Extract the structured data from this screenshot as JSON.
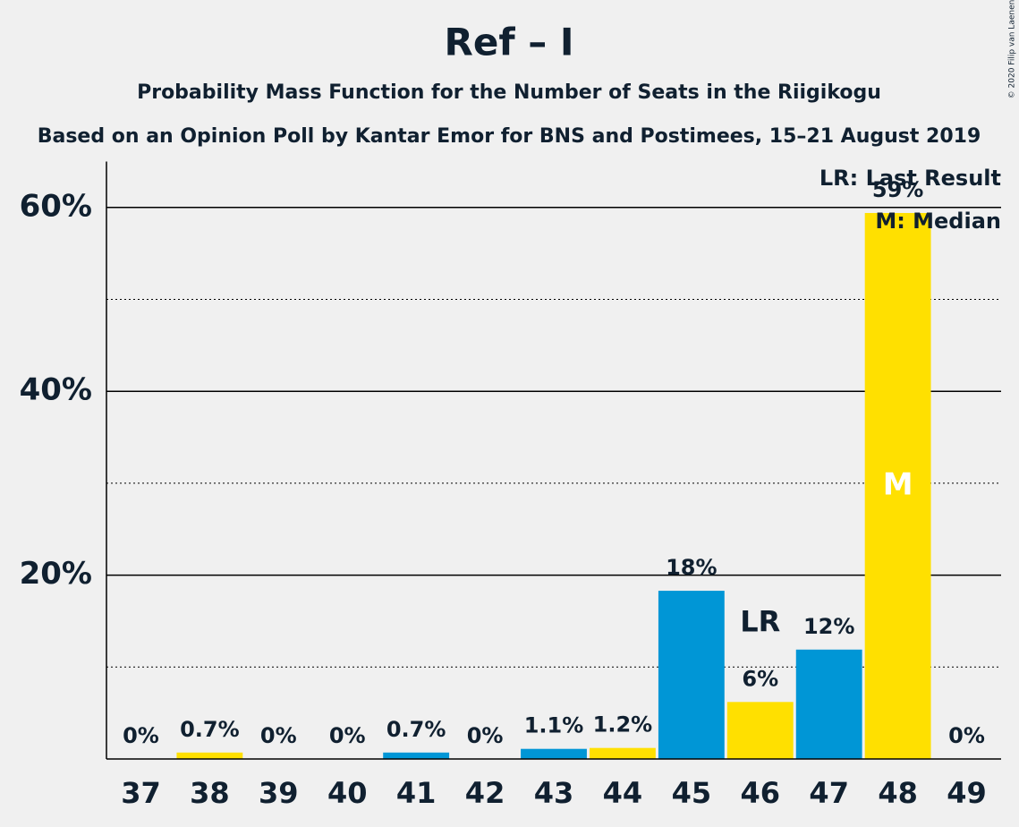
{
  "chart_data": {
    "type": "bar",
    "title": "Ref – I",
    "subtitle": "Probability Mass Function for the Number of Seats in the Riigikogu",
    "subtitle2": "Based on an Opinion Poll by Kantar Emor for BNS and Postimees, 15–21 August 2019",
    "copyright": "© 2020 Filip van Laenen",
    "categories": [
      "37",
      "38",
      "39",
      "40",
      "41",
      "42",
      "43",
      "44",
      "45",
      "46",
      "47",
      "48",
      "49"
    ],
    "values": [
      0,
      0.7,
      0,
      0,
      0.7,
      0,
      1.1,
      1.2,
      18.3,
      6.2,
      11.9,
      59.4,
      0
    ],
    "value_labels": [
      "0%",
      "0.7%",
      "0%",
      "0%",
      "0.7%",
      "0%",
      "1.1%",
      "1.2%",
      "18%",
      "6%",
      "12%",
      "59%",
      "0%"
    ],
    "colors": [
      "#0096d6",
      "#ffe000",
      "#0096d6",
      "#ffe000",
      "#0096d6",
      "#ffe000",
      "#0096d6",
      "#ffe000",
      "#0096d6",
      "#ffe000",
      "#0096d6",
      "#ffe000",
      "#0096d6"
    ],
    "ylim": [
      0,
      65
    ],
    "yticks": [
      {
        "value": 20,
        "label": "20%"
      },
      {
        "value": 40,
        "label": "40%"
      },
      {
        "value": 60,
        "label": "60%"
      }
    ],
    "minor_yticks": [
      10,
      30,
      50
    ],
    "markers": [
      {
        "label": "LR",
        "category": "46"
      },
      {
        "label": "M",
        "category": "48"
      }
    ],
    "legend": [
      "LR: Last Result",
      "M: Median"
    ]
  }
}
